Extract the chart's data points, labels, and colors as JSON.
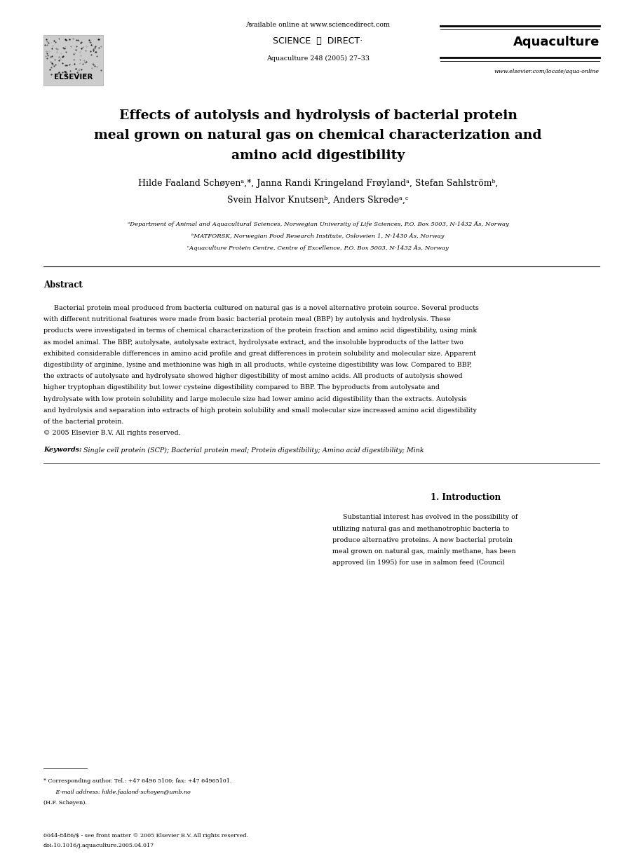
{
  "bg_color": "#ffffff",
  "page_width": 9.07,
  "page_height": 12.38,
  "dpi": 100,
  "available_online": "Available online at www.sciencedirect.com",
  "sciencedirect_label": "SCIENCE  ⓐ  DIRECT·",
  "journal_citation": "Aquaculture 248 (2005) 27–33",
  "journal_name": "Aquaculture",
  "journal_url": "www.elsevier.com/locate/aqua-online",
  "elsevier_label": "ELSEVIER",
  "title_lines": [
    "Effects of autolysis and hydrolysis of bacterial protein",
    "meal grown on natural gas on chemical characterization and",
    "amino acid digestibility"
  ],
  "author_line1": "Hilde Faaland Schøyenᵃ,*, Janna Randi Kringeland Frøylandᵃ, Stefan Sahlströmᵇ,",
  "author_line2": "Svein Halvor Knutsenᵇ, Anders Skredeᵃ,ᶜ",
  "affil1": "ᵃDepartment of Animal and Aquacultural Sciences, Norwegian University of Life Sciences, P.O. Box 5003, N-1432 Ås, Norway",
  "affil2": "ᵇMATFORSK, Norwegian Food Research Institute, Osloveien 1, N-1430 Ås, Norway",
  "affil3": "ᶜAquaculture Protein Centre, Centre of Excellence, P.O. Box 5003, N-1432 Ås, Norway",
  "abstract_label": "Abstract",
  "abstract_lines": [
    "     Bacterial protein meal produced from bacteria cultured on natural gas is a novel alternative protein source. Several products",
    "with different nutritional features were made from basic bacterial protein meal (BBP) by autolysis and hydrolysis. These",
    "products were investigated in terms of chemical characterization of the protein fraction and amino acid digestibility, using mink",
    "as model animal. The BBP, autolysate, autolysate extract, hydrolysate extract, and the insoluble byproducts of the latter two",
    "exhibited considerable differences in amino acid profile and great differences in protein solubility and molecular size. Apparent",
    "digestibility of arginine, lysine and methionine was high in all products, while cysteine digestibility was low. Compared to BBP,",
    "the extracts of autolysate and hydrolysate showed higher digestibility of most amino acids. All products of autolysis showed",
    "higher tryptophan digestibility but lower cysteine digestibility compared to BBP. The byproducts from autolysate and",
    "hydrolysate with low protein solubility and large molecule size had lower amino acid digestibility than the extracts. Autolysis",
    "and hydrolysis and separation into extracts of high protein solubility and small molecular size increased amino acid digestibility",
    "of the bacterial protein.",
    "© 2005 Elsevier B.V. All rights reserved."
  ],
  "keywords_label": "Keywords:",
  "keywords_body": " Single cell protein (SCP); Bacterial protein meal; Protein digestibility; Amino acid digestibility; Mink",
  "intro_title": "1. Introduction",
  "intro_lines": [
    "     Substantial interest has evolved in the possibility of",
    "utilizing natural gas and methanotrophic bacteria to",
    "produce alternative proteins. A new bacterial protein",
    "meal grown on natural gas, mainly methane, has been",
    "approved (in 1995) for use in salmon feed (Council"
  ],
  "footnote_lines": [
    "* Corresponding author. Tel.: +47 6496 5100; fax: +47 64965101.",
    "   E-mail address: hilde.faaland-schoyen@umb.no",
    "(H.F. Schøyen)."
  ],
  "footer_lines": [
    "0044-8486/$ - see front matter © 2005 Elsevier B.V. All rights reserved.",
    "doi:10.1016/j.aquaculture.2005.04.017"
  ]
}
